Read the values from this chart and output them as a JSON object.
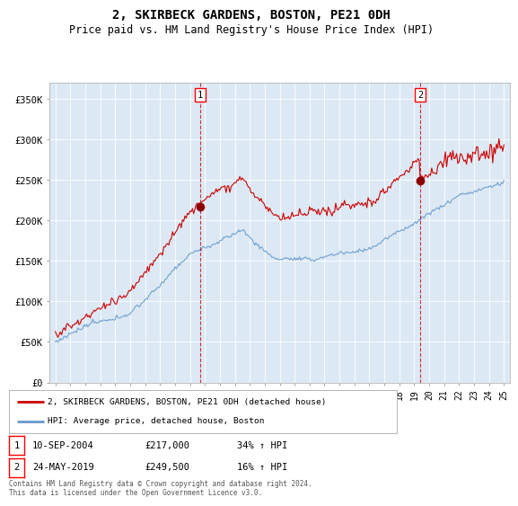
{
  "title": "2, SKIRBECK GARDENS, BOSTON, PE21 0DH",
  "subtitle": "Price paid vs. HM Land Registry's House Price Index (HPI)",
  "background_color": "#dce9f5",
  "plot_bg_color": "#dce9f5",
  "red_line_label": "2, SKIRBECK GARDENS, BOSTON, PE21 0DH (detached house)",
  "blue_line_label": "HPI: Average price, detached house, Boston",
  "purchase1_date": "10-SEP-2004",
  "purchase1_price": 217000,
  "purchase1_hpi": "34% ↑ HPI",
  "purchase2_date": "24-MAY-2019",
  "purchase2_price": 249500,
  "purchase2_hpi": "16% ↑ HPI",
  "footer": "Contains HM Land Registry data © Crown copyright and database right 2024.\nThis data is licensed under the Open Government Licence v3.0.",
  "ylim": [
    0,
    370000
  ],
  "yticks": [
    0,
    50000,
    100000,
    150000,
    200000,
    250000,
    300000,
    350000
  ],
  "ytick_labels": [
    "£0",
    "£50K",
    "£100K",
    "£150K",
    "£200K",
    "£250K",
    "£300K",
    "£350K"
  ],
  "purchase1_year": 2004.7,
  "purchase2_year": 2019.4,
  "red_color": "#cc0000",
  "blue_color": "#6699cc",
  "title_fontsize": 10,
  "subtitle_fontsize": 8.5
}
